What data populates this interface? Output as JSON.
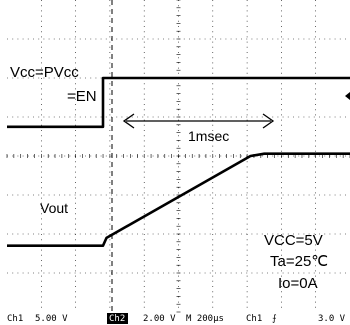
{
  "chart_data": {
    "type": "line",
    "title": "",
    "xlabel": "",
    "ylabel": "",
    "grid": true,
    "x_unit": "µs",
    "time_per_div_us": 200,
    "divisions": {
      "x": 10,
      "y": 8
    },
    "x_range_us": [
      0,
      2000
    ],
    "y_range_div": [
      -4,
      4
    ],
    "series": [
      {
        "name": "Vcc=PVcc=EN",
        "channel": "Ch1",
        "volts_per_div": 5.0,
        "x_us": [
          0,
          560,
          560,
          2000
        ],
        "y_div": [
          0.75,
          0.75,
          2.0,
          2.0
        ]
      },
      {
        "name": "Vout",
        "channel": "Ch2",
        "volts_per_div": 2.0,
        "x_us": [
          0,
          560,
          580,
          1420,
          1500,
          2000
        ],
        "y_div": [
          -2.3,
          -2.3,
          -2.1,
          0.0,
          0.06,
          0.06
        ]
      }
    ],
    "annotations": {
      "vcc_label_line1": "Vcc=PVcc",
      "vcc_label_line2": "=EN",
      "vout_label": "Vout",
      "interval_label": "1msec",
      "cond_vcc": "VCC=5V",
      "cond_ta": "Ta=25℃",
      "cond_io": "Io=0A"
    }
  },
  "status_bar": {
    "ch1": "Ch1",
    "ch1_scale": "5.00 V",
    "ch2": "Ch2",
    "ch2_scale": "2.00 V",
    "timebase": "M  200µs",
    "trigger_source": "Ch1",
    "trigger_slope": "⨍",
    "trigger_level": "3.0 V"
  }
}
